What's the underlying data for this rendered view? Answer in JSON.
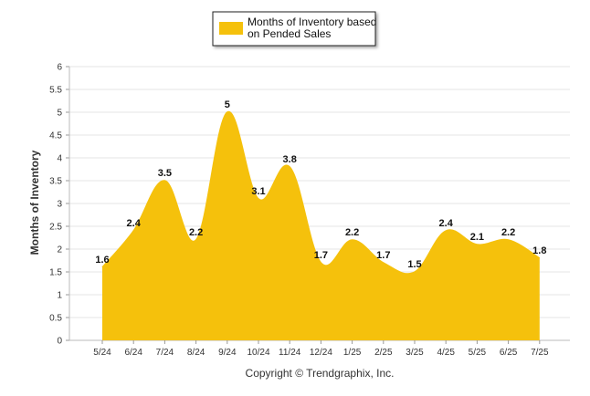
{
  "chart_data": {
    "type": "area",
    "categories": [
      "5/24",
      "6/24",
      "7/24",
      "8/24",
      "9/24",
      "10/24",
      "11/24",
      "12/24",
      "1/25",
      "2/25",
      "3/25",
      "4/25",
      "5/25",
      "6/25",
      "7/25"
    ],
    "series": [
      {
        "name": "Months of Inventory based on Pended Sales",
        "legend_lines": [
          "Months of Inventory based",
          "on Pended Sales"
        ],
        "values": [
          1.6,
          2.4,
          3.5,
          2.2,
          5,
          3.1,
          3.8,
          1.7,
          2.2,
          1.7,
          1.5,
          2.4,
          2.1,
          2.2,
          1.8
        ],
        "data_labels": [
          "1.6",
          "2.4",
          "3.5",
          "2.2",
          "5",
          "3.1",
          "3.8",
          "1.7",
          "2.2",
          "1.7",
          "1.5",
          "2.4",
          "2.1",
          "2.2",
          "1.8"
        ],
        "color": "#F5C10C"
      }
    ],
    "ylabel": "Months of Inventory",
    "ylim": [
      0,
      6
    ],
    "yticks": [
      "0",
      "0.5",
      "1",
      "1.5",
      "2",
      "2.5",
      "3",
      "3.5",
      "4",
      "4.5",
      "5",
      "5.5",
      "6"
    ],
    "grid": true,
    "legend_position": "top-center"
  },
  "footer": {
    "copyright": "Copyright © Trendgraphix, Inc."
  }
}
